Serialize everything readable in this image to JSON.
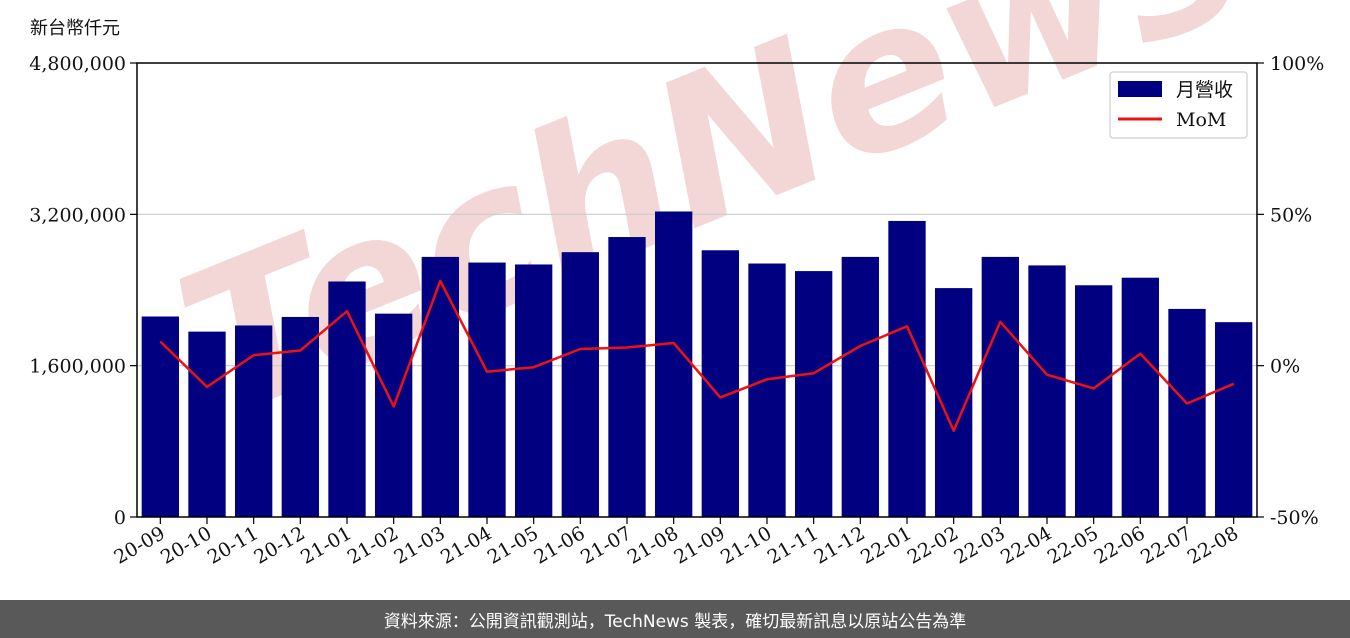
{
  "unit_label": "新台幣仟元",
  "footer_text": "資料來源：公開資訊觀測站，TechNews 製表，確切最新訊息以原站公告為準",
  "watermark_text": "TechNews",
  "colors": {
    "bar": "#000080",
    "line": "#ee1111",
    "grid": "#cccccc",
    "footer_bg": "#595959",
    "watermark": "#f3d6d6"
  },
  "chart_data": {
    "type": "bar",
    "categories": [
      "20-09",
      "20-10",
      "20-11",
      "20-12",
      "21-01",
      "21-02",
      "21-03",
      "21-04",
      "21-05",
      "21-06",
      "21-07",
      "21-08",
      "21-09",
      "21-10",
      "21-11",
      "21-12",
      "22-01",
      "22-02",
      "22-03",
      "22-04",
      "22-05",
      "22-06",
      "22-07",
      "22-08"
    ],
    "series": [
      {
        "name": "月營收",
        "type": "bar",
        "axis": "left",
        "values": [
          2120000,
          1960000,
          2025000,
          2115000,
          2490000,
          2150000,
          2750000,
          2690000,
          2670000,
          2800000,
          2960000,
          3230000,
          2820000,
          2680000,
          2600000,
          2750000,
          3130000,
          2420000,
          2750000,
          2660000,
          2450000,
          2530000,
          2200000,
          2060000
        ]
      },
      {
        "name": "MoM",
        "type": "line",
        "axis": "right",
        "values": [
          8,
          -7,
          3.5,
          5,
          18,
          -13.5,
          28,
          -2,
          -0.5,
          5.5,
          6,
          7.5,
          -10.5,
          -4.5,
          -2.5,
          6.5,
          13,
          -21.5,
          14.5,
          -3,
          -7.5,
          4,
          -12.5,
          -6
        ]
      }
    ],
    "y_left": {
      "range": [
        0,
        4800000
      ],
      "ticks": [
        0,
        1600000,
        3200000,
        4800000
      ],
      "tick_labels": [
        "0",
        "1,600,000",
        "3,200,000",
        "4,800,000"
      ]
    },
    "y_right": {
      "range": [
        -50,
        100
      ],
      "ticks": [
        -50,
        0,
        50,
        100
      ],
      "tick_labels": [
        "-50%",
        "0%",
        "50%",
        "100%"
      ]
    },
    "grid": "horizontal",
    "legend": "top-right",
    "xlabel": "",
    "ylabel": ""
  }
}
